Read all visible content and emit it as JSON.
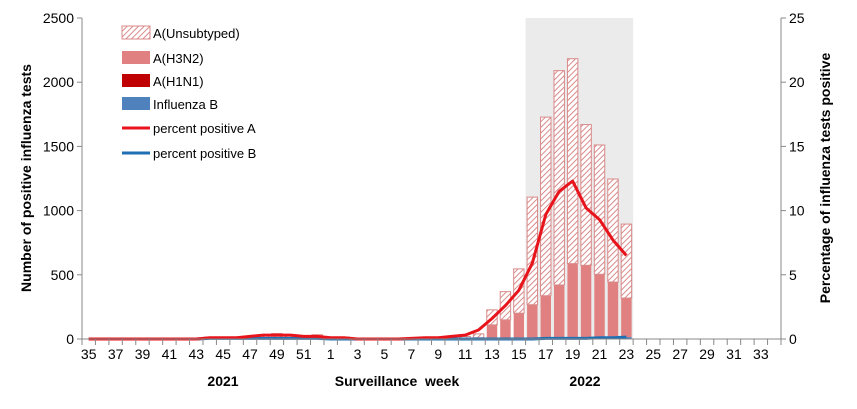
{
  "chart_data": {
    "type": "bar",
    "stacked": true,
    "xlabel": "Surveillance  week",
    "ylabel": "Number of positive influenza tests",
    "y2label": "Percentage of influenza tests positive",
    "ylim": [
      0,
      2500
    ],
    "y2lim": [
      0,
      25
    ],
    "yticks": [
      0,
      500,
      1000,
      1500,
      2000,
      2500
    ],
    "y2ticks": [
      0,
      5,
      10,
      15,
      20,
      25
    ],
    "year_labels": [
      "2021",
      "2022"
    ],
    "highlight_weeks": [
      "16",
      "23"
    ],
    "highlight_color": "#ebebeb",
    "legend_position": "top-left",
    "categories": [
      "35",
      "36",
      "37",
      "38",
      "39",
      "40",
      "41",
      "42",
      "43",
      "44",
      "45",
      "46",
      "47",
      "48",
      "49",
      "50",
      "51",
      "52",
      "1",
      "2",
      "3",
      "4",
      "5",
      "6",
      "7",
      "8",
      "9",
      "10",
      "11",
      "12",
      "13",
      "14",
      "15",
      "16",
      "17",
      "18",
      "19",
      "20",
      "21",
      "22",
      "23",
      "24",
      "25",
      "26",
      "27",
      "28",
      "29",
      "30",
      "31",
      "32",
      "33",
      "34"
    ],
    "series": [
      {
        "name": "A(Unsubtyped)",
        "kind": "bar",
        "color": "#d98a8a",
        "pattern": "hatch",
        "values": [
          0,
          0,
          0,
          0,
          0,
          0,
          0,
          0,
          0,
          12,
          12,
          12,
          15,
          22,
          30,
          18,
          15,
          25,
          12,
          12,
          0,
          0,
          0,
          0,
          3,
          5,
          5,
          8,
          15,
          30,
          117,
          220,
          345,
          838,
          1391,
          1669,
          1596,
          1096,
          1007,
          802,
          576,
          0,
          0,
          0,
          0,
          0,
          0,
          0,
          0,
          0,
          0,
          0
        ]
      },
      {
        "name": "A(H3N2)",
        "kind": "bar",
        "color": "#e08080",
        "values": [
          0,
          0,
          0,
          0,
          0,
          0,
          0,
          0,
          0,
          2,
          2,
          2,
          3,
          5,
          10,
          5,
          3,
          6,
          2,
          2,
          0,
          0,
          0,
          0,
          0,
          1,
          1,
          2,
          5,
          10,
          109,
          148,
          200,
          265,
          335,
          418,
          582,
          568,
          496,
          434,
          304,
          0,
          0,
          0,
          0,
          0,
          0,
          0,
          0,
          0,
          0,
          0
        ]
      },
      {
        "name": "A(H1N1)",
        "kind": "bar",
        "color": "#c00000",
        "values": [
          0,
          0,
          0,
          0,
          0,
          0,
          0,
          0,
          0,
          0,
          0,
          0,
          0,
          0,
          0,
          0,
          0,
          0,
          0,
          0,
          0,
          0,
          0,
          0,
          0,
          0,
          0,
          0,
          0,
          0,
          0,
          0,
          0,
          0,
          0,
          0,
          0,
          0,
          0,
          0,
          0,
          0,
          0,
          0,
          0,
          0,
          0,
          0,
          0,
          0,
          0,
          0
        ]
      },
      {
        "name": "Influenza B",
        "kind": "bar",
        "color": "#4f81bd",
        "values": [
          0,
          0,
          0,
          0,
          0,
          0,
          0,
          0,
          0,
          1,
          1,
          2,
          3,
          3,
          3,
          2,
          2,
          2,
          1,
          1,
          0,
          0,
          0,
          0,
          0,
          0,
          0,
          0,
          0,
          0,
          1,
          1,
          1,
          2,
          2,
          3,
          5,
          6,
          8,
          10,
          15,
          0,
          0,
          0,
          0,
          0,
          0,
          0,
          0,
          0,
          0,
          0
        ]
      },
      {
        "name": "percent positive A",
        "kind": "line",
        "axis": "right",
        "color": "#e8141c",
        "values": [
          0,
          0,
          0,
          0,
          0,
          0,
          0,
          0,
          0,
          0.1,
          0.1,
          0.1,
          0.2,
          0.3,
          0.3,
          0.3,
          0.2,
          0.2,
          0.1,
          0.1,
          0,
          0,
          0,
          0,
          0.05,
          0.1,
          0.1,
          0.2,
          0.3,
          0.7,
          1.6,
          2.6,
          3.8,
          5.9,
          9.7,
          11.5,
          12.3,
          10.2,
          9.3,
          7.7,
          6.5,
          null,
          null,
          null,
          null,
          null,
          null,
          null,
          null,
          null,
          null,
          null
        ]
      },
      {
        "name": "percent positive B",
        "kind": "line",
        "axis": "right",
        "color": "#1f6fb5",
        "values": [
          0,
          0,
          0,
          0,
          0,
          0,
          0,
          0,
          0,
          0.05,
          0.05,
          0.05,
          0.05,
          0.05,
          0.05,
          0.05,
          0.05,
          0.05,
          0,
          0,
          0,
          0,
          0,
          0,
          0,
          0,
          0,
          0,
          0,
          0,
          0,
          0,
          0,
          0,
          0.05,
          0.05,
          0.05,
          0.05,
          0.1,
          0.1,
          0.15,
          null,
          null,
          null,
          null,
          null,
          null,
          null,
          null,
          null,
          null,
          null
        ]
      }
    ]
  }
}
